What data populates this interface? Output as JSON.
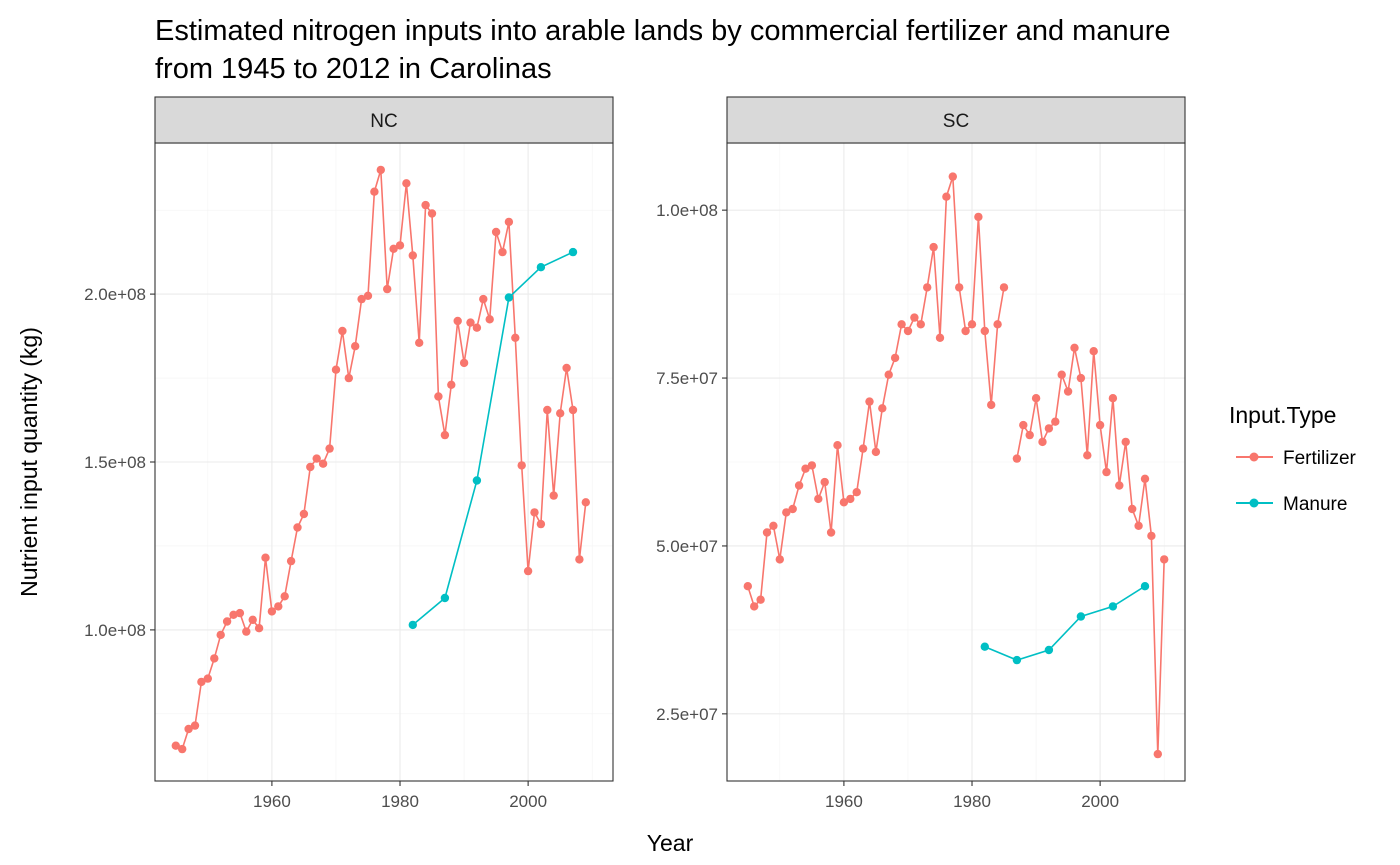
{
  "chart_data": {
    "type": "line",
    "title": "Estimated nitrogen inputs into arable lands by commercial fertilizer and manure",
    "title_line2": "from 1945 to 2012 in Carolinas",
    "xlabel": "Year",
    "ylabel": "Nutrient input quantity (kg)",
    "legend": {
      "title": "Input.Type",
      "placement": "right",
      "entries": [
        {
          "name": "Fertilizer",
          "color": "#F8766D"
        },
        {
          "name": "Manure",
          "color": "#00BFC4"
        }
      ]
    },
    "x_ticks": [
      1960,
      1980,
      2000
    ],
    "x_tick_labels": [
      "1960",
      "1980",
      "2000"
    ],
    "xlim": [
      1941.75,
      2013.25
    ],
    "grid": true,
    "panels": [
      {
        "strip": "NC",
        "ylim": [
          55000000,
          245000000
        ],
        "y_ticks": [
          100000000,
          150000000,
          200000000
        ],
        "y_tick_labels": [
          "1.0e+08",
          "1.5e+08",
          "2.0e+08"
        ],
        "series": [
          {
            "name": "Fertilizer",
            "color": "#F8766D",
            "x": [
              1945,
              1946,
              1947,
              1948,
              1949,
              1950,
              1951,
              1952,
              1953,
              1954,
              1955,
              1956,
              1957,
              1958,
              1959,
              1960,
              1961,
              1962,
              1963,
              1964,
              1965,
              1966,
              1967,
              1968,
              1969,
              1970,
              1971,
              1972,
              1973,
              1974,
              1975,
              1976,
              1977,
              1978,
              1979,
              1980,
              1981,
              1982,
              1983,
              1984,
              1985,
              1986,
              1987,
              1988,
              1989,
              1990,
              1991,
              1992,
              1993,
              1994,
              1995,
              1996,
              1997,
              1998,
              1999,
              2000,
              2001,
              2002,
              2003,
              2004,
              2005,
              2006,
              2007,
              2008,
              2009,
              2010
            ],
            "y": [
              65500000,
              64500000,
              70500000,
              71500000,
              84500000,
              85500000,
              91500000,
              98500000,
              102500000,
              104500000,
              105000000,
              99500000,
              103000000,
              100500000,
              121500000,
              105500000,
              107000000,
              110000000,
              120500000,
              130500000,
              134500000,
              148500000,
              151000000,
              149500000,
              154000000,
              177500000,
              189000000,
              175000000,
              184500000,
              198500000,
              199500000,
              230500000,
              237000000,
              201500000,
              213500000,
              214500000,
              233000000,
              211500000,
              185500000,
              226500000,
              224000000,
              169500000,
              158000000,
              173000000,
              192000000,
              179500000,
              191500000,
              190000000,
              198500000,
              192500000,
              218500000,
              212500000,
              221500000,
              187000000,
              149000000,
              117500000,
              135000000,
              131500000,
              165500000,
              140000000,
              164500000,
              178000000,
              165500000,
              121000000,
              138000000,
              null
            ]
          },
          {
            "name": "Manure",
            "color": "#00BFC4",
            "x": [
              1982,
              1987,
              1992,
              1997,
              2002,
              2007
            ],
            "y": [
              101500000,
              109500000,
              144500000,
              199000000,
              208000000,
              212500000
            ]
          }
        ]
      },
      {
        "strip": "SC",
        "ylim": [
          15000000,
          110000000
        ],
        "y_ticks": [
          25000000,
          50000000,
          75000000,
          100000000
        ],
        "y_tick_labels": [
          "2.5e+07",
          "5.0e+07",
          "7.5e+07",
          "1.0e+08"
        ],
        "series": [
          {
            "name": "Fertilizer",
            "color": "#F8766D",
            "x": [
              1945,
              1946,
              1947,
              1948,
              1949,
              1950,
              1951,
              1952,
              1953,
              1954,
              1955,
              1956,
              1957,
              1958,
              1959,
              1960,
              1961,
              1962,
              1963,
              1964,
              1965,
              1966,
              1967,
              1968,
              1969,
              1970,
              1971,
              1972,
              1973,
              1974,
              1975,
              1976,
              1977,
              1978,
              1979,
              1980,
              1981,
              1982,
              1983,
              1984,
              1985,
              1986,
              1987,
              1988,
              1989,
              1990,
              1991,
              1992,
              1993,
              1994,
              1995,
              1996,
              1997,
              1998,
              1999,
              2000,
              2001,
              2002,
              2003,
              2004,
              2005,
              2006,
              2007,
              2008,
              2009,
              2010
            ],
            "y": [
              44000000,
              41000000,
              42000000,
              52000000,
              53000000,
              48000000,
              55000000,
              55500000,
              59000000,
              61500000,
              62000000,
              57000000,
              59500000,
              52000000,
              65000000,
              56500000,
              57000000,
              58000000,
              64500000,
              71500000,
              64000000,
              70500000,
              75500000,
              78000000,
              83000000,
              82000000,
              84000000,
              83000000,
              88500000,
              94500000,
              81000000,
              102000000,
              105000000,
              88500000,
              82000000,
              83000000,
              99000000,
              82000000,
              71000000,
              83000000,
              88500000,
              null,
              63000000,
              68000000,
              66500000,
              72000000,
              65500000,
              67500000,
              68500000,
              75500000,
              73000000,
              79500000,
              75000000,
              63500000,
              79000000,
              68000000,
              61000000,
              72000000,
              59000000,
              65500000,
              55500000,
              53000000,
              60000000,
              51500000,
              19000000,
              48000000
            ]
          },
          {
            "name": "Manure",
            "color": "#00BFC4",
            "x": [
              1982,
              1987,
              1992,
              1997,
              2002,
              2007
            ],
            "y": [
              35000000,
              33000000,
              34500000,
              39500000,
              41000000,
              44000000
            ]
          }
        ]
      }
    ]
  }
}
